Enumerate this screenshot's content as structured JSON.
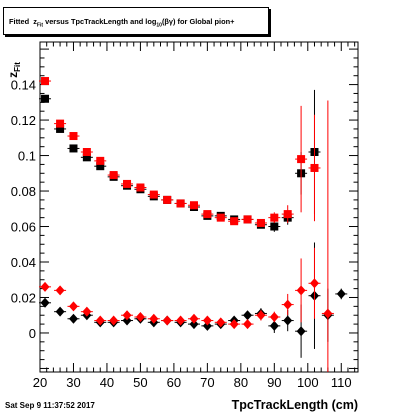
{
  "header": {
    "title": "Fitted  z_Fit versus TpcTrackLength and log_10(βγ) for Global pion+",
    "timestamp": "Sat Sep  9 11:37:52 2017"
  },
  "chart_data": {
    "type": "scatter",
    "title": "Fitted  z_Fit versus TpcTrackLength and log_10(βγ) for Global pion+",
    "xlabel": "TpcTrackLength (cm)",
    "ylabel": "z_Fit",
    "xlim": [
      20,
      115
    ],
    "ylim": [
      -0.022,
      0.164
    ],
    "xticks": [
      20,
      30,
      40,
      50,
      60,
      70,
      80,
      90,
      100,
      110
    ],
    "yticks": [
      0,
      0.02,
      0.04,
      0.06,
      0.08,
      0.1,
      0.12,
      0.14
    ],
    "ytick_labels": [
      "0",
      "0.02",
      "0.04",
      "0.06",
      "0.08",
      "0.1",
      "0.12",
      "0.14"
    ],
    "grid": false,
    "legend": null,
    "series": [
      {
        "marker": "square",
        "color": "#000000",
        "points": [
          {
            "x": 21.5,
            "y": 0.132,
            "ey": 0.002
          },
          {
            "x": 26,
            "y": 0.115,
            "ey": 0.002
          },
          {
            "x": 30,
            "y": 0.104,
            "ey": 0.002
          },
          {
            "x": 34,
            "y": 0.099,
            "ey": 0.002
          },
          {
            "x": 38,
            "y": 0.094,
            "ey": 0.002
          },
          {
            "x": 42,
            "y": 0.088,
            "ey": 0.002
          },
          {
            "x": 46,
            "y": 0.083,
            "ey": 0.002
          },
          {
            "x": 50,
            "y": 0.081,
            "ey": 0.002
          },
          {
            "x": 54,
            "y": 0.077,
            "ey": 0.002
          },
          {
            "x": 58,
            "y": 0.075,
            "ey": 0.002
          },
          {
            "x": 62,
            "y": 0.073,
            "ey": 0.002
          },
          {
            "x": 66,
            "y": 0.071,
            "ey": 0.002
          },
          {
            "x": 70,
            "y": 0.066,
            "ey": 0.002
          },
          {
            "x": 74,
            "y": 0.066,
            "ey": 0.002
          },
          {
            "x": 78,
            "y": 0.064,
            "ey": 0.002
          },
          {
            "x": 82,
            "y": 0.064,
            "ey": 0.002
          },
          {
            "x": 86,
            "y": 0.061,
            "ey": 0.002
          },
          {
            "x": 90,
            "y": 0.06,
            "ey": 0.003
          },
          {
            "x": 94,
            "y": 0.065,
            "ey": 0.004
          },
          {
            "x": 98,
            "y": 0.09,
            "ey": 0.012
          },
          {
            "x": 102,
            "y": 0.102,
            "ey": 0.035
          }
        ]
      },
      {
        "marker": "square",
        "color": "#ff0000",
        "points": [
          {
            "x": 21.5,
            "y": 0.142,
            "ey": 0.002
          },
          {
            "x": 26,
            "y": 0.118,
            "ey": 0.002
          },
          {
            "x": 30,
            "y": 0.111,
            "ey": 0.002
          },
          {
            "x": 34,
            "y": 0.102,
            "ey": 0.002
          },
          {
            "x": 38,
            "y": 0.097,
            "ey": 0.002
          },
          {
            "x": 42,
            "y": 0.089,
            "ey": 0.002
          },
          {
            "x": 46,
            "y": 0.084,
            "ey": 0.002
          },
          {
            "x": 50,
            "y": 0.082,
            "ey": 0.002
          },
          {
            "x": 54,
            "y": 0.078,
            "ey": 0.002
          },
          {
            "x": 58,
            "y": 0.075,
            "ey": 0.002
          },
          {
            "x": 62,
            "y": 0.073,
            "ey": 0.002
          },
          {
            "x": 66,
            "y": 0.072,
            "ey": 0.002
          },
          {
            "x": 70,
            "y": 0.067,
            "ey": 0.002
          },
          {
            "x": 74,
            "y": 0.065,
            "ey": 0.002
          },
          {
            "x": 78,
            "y": 0.063,
            "ey": 0.002
          },
          {
            "x": 82,
            "y": 0.064,
            "ey": 0.002
          },
          {
            "x": 86,
            "y": 0.062,
            "ey": 0.002
          },
          {
            "x": 90,
            "y": 0.065,
            "ey": 0.003
          },
          {
            "x": 94,
            "y": 0.067,
            "ey": 0.005
          },
          {
            "x": 98,
            "y": 0.098,
            "ey": 0.03
          },
          {
            "x": 102,
            "y": 0.093,
            "ey": 0.03
          }
        ]
      },
      {
        "marker": "diamond",
        "color": "#000000",
        "points": [
          {
            "x": 21.5,
            "y": 0.017,
            "ey": 0.002
          },
          {
            "x": 26,
            "y": 0.012,
            "ey": 0.002
          },
          {
            "x": 30,
            "y": 0.008,
            "ey": 0.002
          },
          {
            "x": 34,
            "y": 0.01,
            "ey": 0.002
          },
          {
            "x": 38,
            "y": 0.006,
            "ey": 0.002
          },
          {
            "x": 42,
            "y": 0.006,
            "ey": 0.002
          },
          {
            "x": 46,
            "y": 0.007,
            "ey": 0.002
          },
          {
            "x": 50,
            "y": 0.008,
            "ey": 0.002
          },
          {
            "x": 54,
            "y": 0.006,
            "ey": 0.002
          },
          {
            "x": 58,
            "y": 0.007,
            "ey": 0.002
          },
          {
            "x": 62,
            "y": 0.006,
            "ey": 0.002
          },
          {
            "x": 66,
            "y": 0.005,
            "ey": 0.002
          },
          {
            "x": 70,
            "y": 0.004,
            "ey": 0.002
          },
          {
            "x": 74,
            "y": 0.005,
            "ey": 0.002
          },
          {
            "x": 78,
            "y": 0.007,
            "ey": 0.002
          },
          {
            "x": 82,
            "y": 0.01,
            "ey": 0.002
          },
          {
            "x": 86,
            "y": 0.011,
            "ey": 0.003
          },
          {
            "x": 90,
            "y": 0.004,
            "ey": 0.004
          },
          {
            "x": 94,
            "y": 0.007,
            "ey": 0.006
          },
          {
            "x": 98,
            "y": 0.001,
            "ey": 0.015
          },
          {
            "x": 102,
            "y": 0.021,
            "ey": 0.03
          },
          {
            "x": 106,
            "y": 0.01,
            "ey": 0.015
          },
          {
            "x": 110,
            "y": 0.022,
            "ey": 0.003
          }
        ]
      },
      {
        "marker": "diamond",
        "color": "#ff0000",
        "points": [
          {
            "x": 21.5,
            "y": 0.026,
            "ey": 0.002
          },
          {
            "x": 26,
            "y": 0.024,
            "ey": 0.002
          },
          {
            "x": 30,
            "y": 0.015,
            "ey": 0.002
          },
          {
            "x": 34,
            "y": 0.012,
            "ey": 0.002
          },
          {
            "x": 38,
            "y": 0.007,
            "ey": 0.002
          },
          {
            "x": 42,
            "y": 0.007,
            "ey": 0.002
          },
          {
            "x": 46,
            "y": 0.01,
            "ey": 0.002
          },
          {
            "x": 50,
            "y": 0.009,
            "ey": 0.002
          },
          {
            "x": 54,
            "y": 0.008,
            "ey": 0.002
          },
          {
            "x": 58,
            "y": 0.007,
            "ey": 0.002
          },
          {
            "x": 62,
            "y": 0.007,
            "ey": 0.002
          },
          {
            "x": 66,
            "y": 0.008,
            "ey": 0.002
          },
          {
            "x": 70,
            "y": 0.007,
            "ey": 0.002
          },
          {
            "x": 74,
            "y": 0.006,
            "ey": 0.002
          },
          {
            "x": 78,
            "y": 0.005,
            "ey": 0.002
          },
          {
            "x": 82,
            "y": 0.005,
            "ey": 0.002
          },
          {
            "x": 86,
            "y": 0.01,
            "ey": 0.003
          },
          {
            "x": 90,
            "y": 0.009,
            "ey": 0.003
          },
          {
            "x": 94,
            "y": 0.016,
            "ey": 0.006
          },
          {
            "x": 98,
            "y": 0.024,
            "ey": 0.018
          },
          {
            "x": 102,
            "y": 0.028,
            "ey": 0.02
          },
          {
            "x": 106,
            "y": 0.011,
            "ey": 0.12
          }
        ]
      }
    ]
  }
}
